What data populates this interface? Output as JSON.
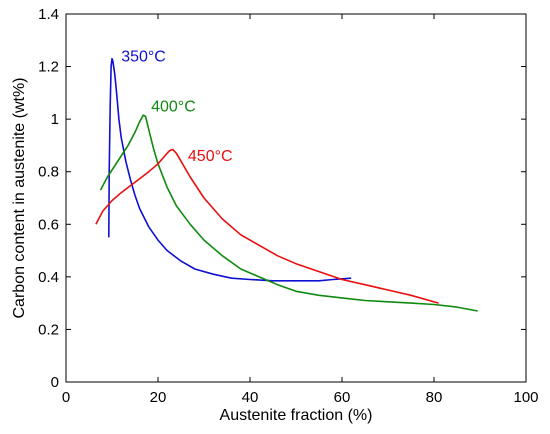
{
  "chart_data": {
    "type": "line",
    "xlabel": "Austenite fraction (%)",
    "ylabel": "Carbon content in austenite (wt%)",
    "xlim": [
      0,
      100
    ],
    "ylim": [
      0,
      1.4
    ],
    "xticks": [
      "0",
      "20",
      "40",
      "60",
      "80",
      "100"
    ],
    "yticks": [
      "0",
      "0.2",
      "0.4",
      "0.6",
      "0.8",
      "1",
      "1.2",
      "1.4"
    ],
    "grid": false,
    "series": [
      {
        "name": "350°C",
        "color": "#1010d0",
        "x": [
          9.3,
          9.4,
          9.6,
          9.8,
          10.0,
          10.2,
          10.6,
          11.0,
          11.5,
          12.0,
          13.0,
          14.0,
          15.0,
          16.0,
          18.0,
          20.0,
          22.0,
          25.0,
          28.0,
          32.0,
          36.0,
          40.0,
          45.0,
          50.0,
          55.0,
          58.0,
          62.0
        ],
        "y": [
          0.55,
          0.8,
          1.05,
          1.2,
          1.23,
          1.22,
          1.17,
          1.1,
          1.0,
          0.93,
          0.84,
          0.77,
          0.71,
          0.66,
          0.59,
          0.54,
          0.5,
          0.46,
          0.43,
          0.41,
          0.395,
          0.39,
          0.385,
          0.385,
          0.385,
          0.39,
          0.395
        ]
      },
      {
        "name": "400°C",
        "color": "#108a10",
        "x": [
          7.5,
          9.0,
          10.5,
          12.0,
          13.5,
          15.0,
          16.0,
          16.8,
          17.3,
          18.0,
          19.0,
          20.0,
          22.0,
          24.0,
          27.0,
          30.0,
          34.0,
          38.0,
          42.0,
          46.0,
          50.0,
          55.0,
          60.0,
          65.0,
          70.0,
          75.0,
          80.0,
          85.0,
          89.5
        ],
        "y": [
          0.73,
          0.78,
          0.82,
          0.86,
          0.9,
          0.95,
          0.99,
          1.015,
          1.01,
          0.96,
          0.89,
          0.83,
          0.74,
          0.67,
          0.6,
          0.54,
          0.48,
          0.43,
          0.4,
          0.37,
          0.345,
          0.33,
          0.32,
          0.31,
          0.305,
          0.3,
          0.295,
          0.285,
          0.27
        ]
      },
      {
        "name": "450°C",
        "color": "#e81010",
        "x": [
          6.5,
          8.0,
          10.0,
          12.0,
          15.0,
          18.0,
          20.0,
          21.5,
          22.5,
          23.2,
          24.0,
          25.0,
          27.0,
          30.0,
          34.0,
          38.0,
          42.0,
          46.0,
          50.0,
          55.0,
          60.0,
          65.0,
          70.0,
          75.0,
          81.0
        ],
        "y": [
          0.6,
          0.65,
          0.69,
          0.72,
          0.76,
          0.8,
          0.83,
          0.86,
          0.88,
          0.885,
          0.87,
          0.84,
          0.78,
          0.7,
          0.62,
          0.56,
          0.52,
          0.48,
          0.45,
          0.42,
          0.39,
          0.37,
          0.35,
          0.33,
          0.3
        ]
      }
    ],
    "annotations": [
      {
        "text": "350°C",
        "x": 12,
        "y": 1.22,
        "color": "#1010d0"
      },
      {
        "text": "400°C",
        "x": 18.5,
        "y": 1.03,
        "color": "#108a10"
      },
      {
        "text": "450°C",
        "x": 26.5,
        "y": 0.84,
        "color": "#e81010"
      }
    ]
  }
}
